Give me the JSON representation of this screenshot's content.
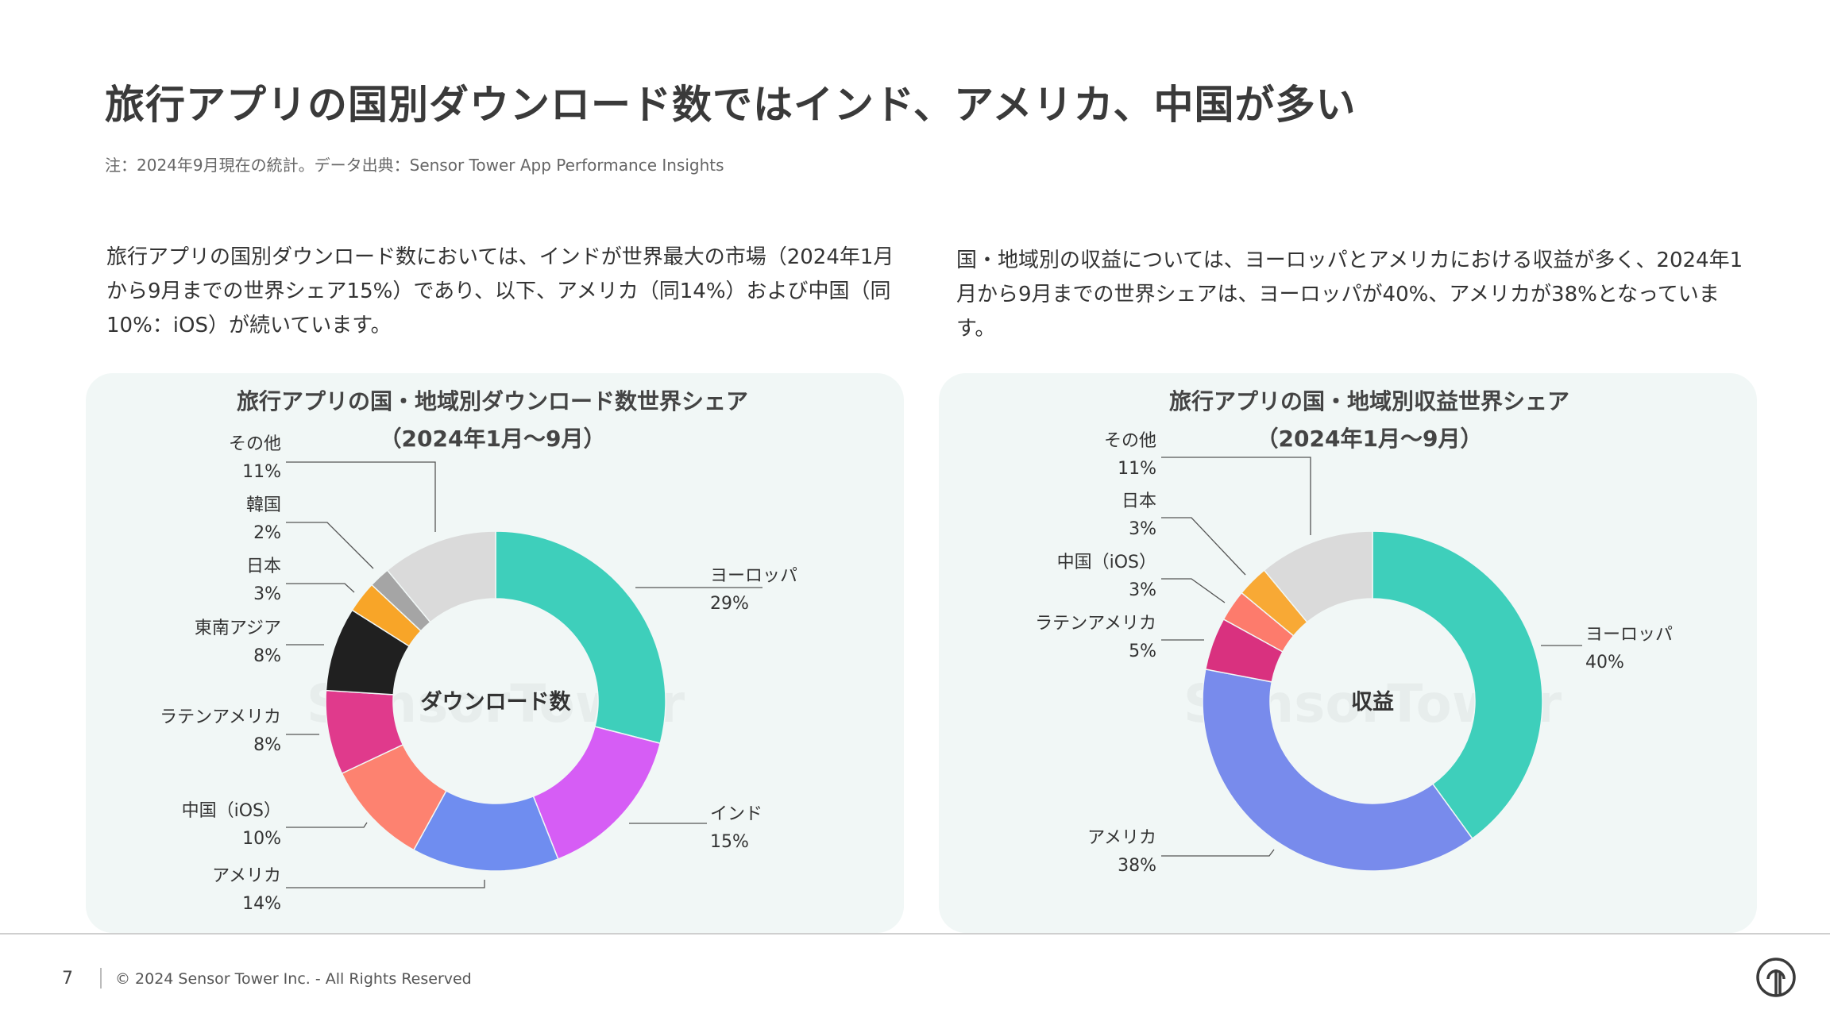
{
  "page": {
    "title": "旅行アプリの国別ダウンロード数ではインド、アメリカ、中国が多い",
    "note": "注：2024年9月現在の統計。データ出典：Sensor Tower App Performance Insights",
    "desc_left": "旅行アプリの国別ダウンロード数においては、インドが世界最大の市場（2024年1月から9月までの世界シェア15%）であり、以下、アメリカ（同14%）および中国（同10%：iOS）が続いています。",
    "desc_right": "国・地域別の収益については、ヨーロッパとアメリカにおける収益が多く、2024年1月から9月までの世界シェアは、ヨーロッパが40%、アメリカが38%となっています。",
    "page_number": "7",
    "copyright": "© 2024 Sensor Tower Inc. - All Rights Reserved",
    "watermark": "SensorTower"
  },
  "chart_data": [
    {
      "type": "pie",
      "title": "旅行アプリの国・地域別ダウンロード数世界シェア",
      "subtitle": "（2024年1月〜9月）",
      "center_label": "ダウンロード数",
      "slices": [
        {
          "label": "ヨーロッパ",
          "value": 29,
          "value_label": "29%",
          "color": "#3ecfbb"
        },
        {
          "label": "インド",
          "value": 15,
          "value_label": "15%",
          "color": "#d65df5"
        },
        {
          "label": "アメリカ",
          "value": 14,
          "value_label": "14%",
          "color": "#6f8df0"
        },
        {
          "label": "中国（iOS）",
          "value": 10,
          "value_label": "10%",
          "color": "#fd8270"
        },
        {
          "label": "ラテンアメリカ",
          "value": 8,
          "value_label": "8%",
          "color": "#e03a8c"
        },
        {
          "label": "東南アジア",
          "value": 8,
          "value_label": "8%",
          "color": "#202020"
        },
        {
          "label": "日本",
          "value": 3,
          "value_label": "3%",
          "color": "#f8a528"
        },
        {
          "label": "韓国",
          "value": 2,
          "value_label": "2%",
          "color": "#a5a5a5"
        },
        {
          "label": "その他",
          "value": 11,
          "value_label": "11%",
          "color": "#dadada"
        }
      ]
    },
    {
      "type": "pie",
      "title": "旅行アプリの国・地域別収益世界シェア",
      "subtitle": "（2024年1月〜9月）",
      "center_label": "収益",
      "slices": [
        {
          "label": "ヨーロッパ",
          "value": 40,
          "value_label": "40%",
          "color": "#3ecfbb"
        },
        {
          "label": "アメリカ",
          "value": 38,
          "value_label": "38%",
          "color": "#788bec"
        },
        {
          "label": "ラテンアメリカ",
          "value": 5,
          "value_label": "5%",
          "color": "#d9317f"
        },
        {
          "label": "中国（iOS）",
          "value": 3,
          "value_label": "3%",
          "color": "#fd7b6c"
        },
        {
          "label": "日本",
          "value": 3,
          "value_label": "3%",
          "color": "#f8a935"
        },
        {
          "label": "その他",
          "value": 11,
          "value_label": "11%",
          "color": "#dadada"
        }
      ]
    }
  ]
}
